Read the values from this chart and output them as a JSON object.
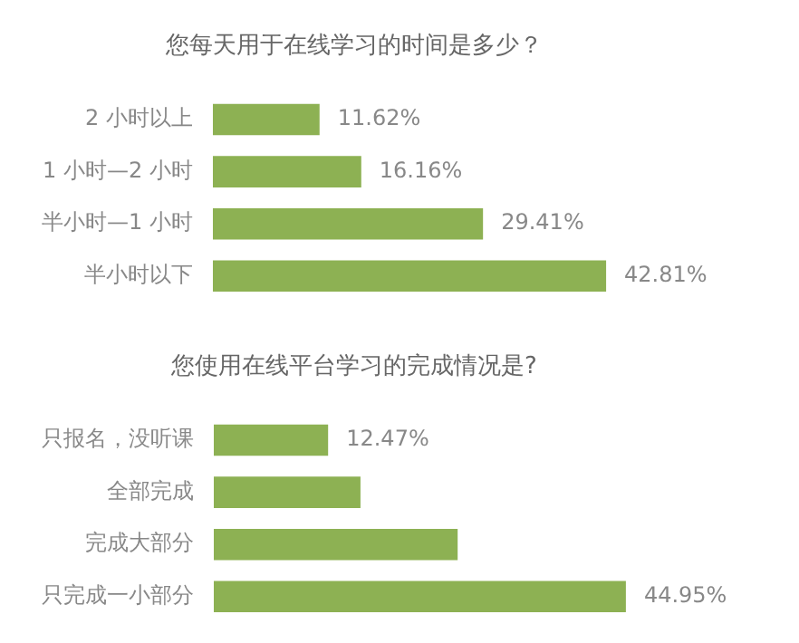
{
  "chart_data": [
    {
      "type": "bar",
      "orientation": "horizontal",
      "title": "您每天用于在线学习的时间是多少？",
      "categories": [
        "2 小时以上",
        "1 小时—2 小时",
        "半小时—1 小时",
        "半小时以下"
      ],
      "values": [
        11.62,
        16.16,
        29.41,
        42.81
      ],
      "color": "#8db153",
      "value_labels": [
        "11.62%",
        "16.16%",
        "29.41%",
        "42.81%"
      ]
    },
    {
      "type": "bar",
      "orientation": "horizontal",
      "title": "您使用在线平台学习的完成情况是?",
      "categories": [
        "只报名，没听课",
        "全部完成",
        "完成大部分",
        "只完成一小部分"
      ],
      "values": [
        12.47,
        16.0,
        26.6,
        44.95
      ],
      "color": "#8db153",
      "value_labels": [
        "12.47%",
        null,
        null,
        "44.95%"
      ]
    }
  ]
}
